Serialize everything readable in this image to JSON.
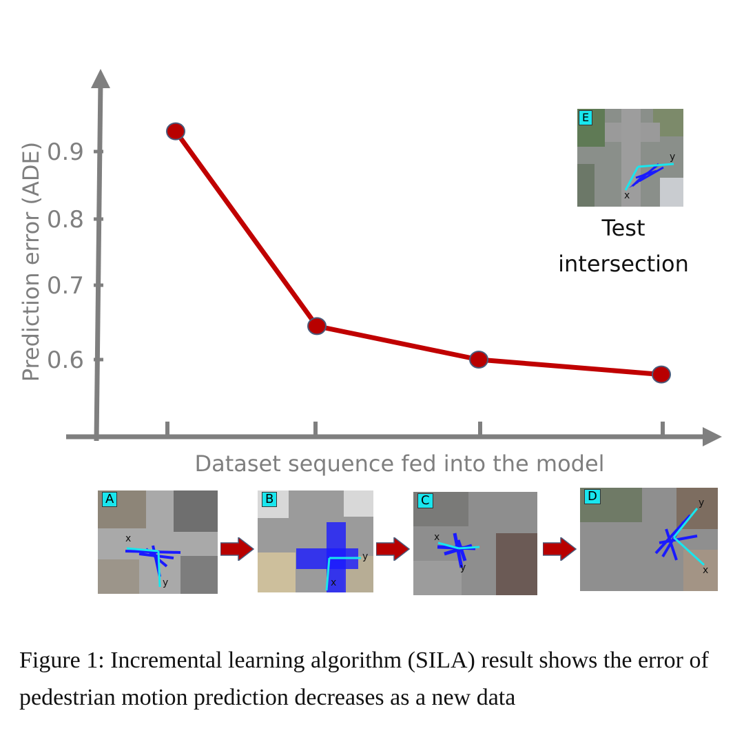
{
  "chart_data": {
    "type": "line",
    "ylabel": "Prediction error (ADE)",
    "xlabel": "Dataset sequence fed into the model",
    "y_ticks": [
      "0.9",
      "0.8",
      "0.7",
      "0.6"
    ],
    "y_tick_values": [
      0.9,
      0.8,
      0.7,
      0.6
    ],
    "categories": [
      "A",
      "B",
      "C",
      "D"
    ],
    "values": [
      0.93,
      0.645,
      0.6,
      0.58
    ],
    "grid": false,
    "line_color": "#c00000",
    "marker_color": "#b80000",
    "axis_color": "#7f7f7f"
  },
  "test_image": {
    "tag": "E",
    "axis_x": "x",
    "axis_y": "y"
  },
  "test_label": "Test intersection",
  "sequence_images": [
    {
      "tag": "A",
      "axis_x": "x",
      "axis_y": "y"
    },
    {
      "tag": "B",
      "axis_x": "x",
      "axis_y": "y"
    },
    {
      "tag": "C",
      "axis_x": "x",
      "axis_y": "y"
    },
    {
      "tag": "D",
      "axis_x": "x",
      "axis_y": "y"
    }
  ],
  "caption": "Figure 1: Incremental learning algorithm (SILA) result shows the error of pedestrian motion prediction decreases as a new data",
  "colors": {
    "tag": "#19e6ee",
    "arrow": "#b80000",
    "trajectory": "#1a1aff",
    "axis_arrow": "#19e6ee"
  }
}
